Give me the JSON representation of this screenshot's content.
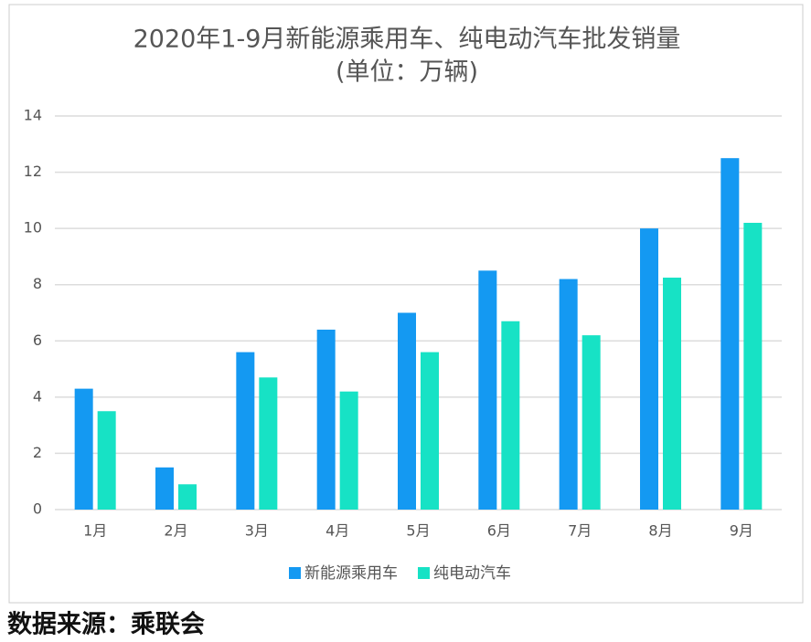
{
  "chart_data": {
    "type": "bar",
    "title": "2020年1-9月新能源乘用车、纯电动汽车批发销量",
    "subtitle": "(单位：万辆)",
    "categories": [
      "1月",
      "2月",
      "3月",
      "4月",
      "5月",
      "6月",
      "7月",
      "8月",
      "9月"
    ],
    "series": [
      {
        "name": "新能源乘用车",
        "color": "#1499f2",
        "values": [
          4.3,
          1.5,
          5.6,
          6.4,
          7.0,
          8.5,
          8.2,
          10.0,
          12.5
        ]
      },
      {
        "name": "纯电动汽车",
        "color": "#17e2c5",
        "values": [
          3.5,
          0.9,
          4.7,
          4.2,
          5.6,
          6.7,
          6.2,
          8.25,
          10.2
        ]
      }
    ],
    "ylim": [
      0,
      14
    ],
    "yticks": [
      0,
      2,
      4,
      6,
      8,
      10,
      12,
      14
    ],
    "grid": true,
    "legend": "bottom",
    "source": "数据来源：乘联会"
  }
}
